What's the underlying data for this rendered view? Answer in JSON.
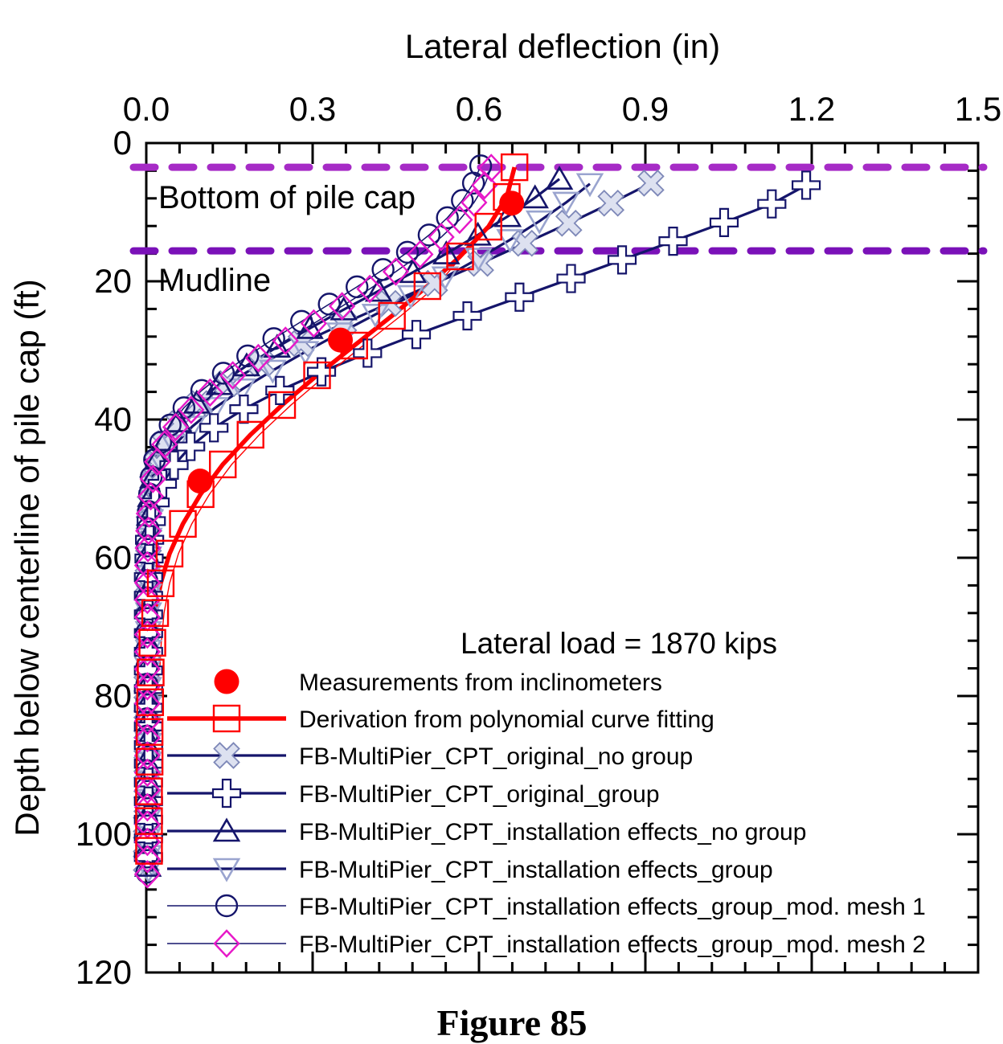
{
  "figure": {
    "caption": "Figure 85"
  },
  "chart_data": {
    "type": "line",
    "title": "",
    "xlabel": "Lateral deflection (in)",
    "ylabel": "Depth below centerline of pile cap (ft)",
    "xlim": [
      0.0,
      1.5
    ],
    "ylim": [
      0,
      120
    ],
    "y_inverted": true,
    "grid": false,
    "x_axis_position": "top",
    "x_ticks": {
      "major_labels": [
        "0.0",
        "0.3",
        "0.6",
        "0.9",
        "1.2",
        "1.5"
      ],
      "major_values": [
        0.0,
        0.3,
        0.6,
        0.9,
        1.2,
        1.5
      ],
      "minor_step": 0.06
    },
    "y_ticks": {
      "major_labels": [
        "0",
        "20",
        "40",
        "60",
        "80",
        "100",
        "120"
      ],
      "major_values": [
        0,
        20,
        40,
        60,
        80,
        100,
        120
      ],
      "minor_step": 4
    },
    "reference_lines": [
      {
        "label": "Bottom of pile cap",
        "depth_ft": 3.5,
        "color": "#a62bc6"
      },
      {
        "label": "Mudline",
        "depth_ft": 15.6,
        "color": "#7a11b8"
      }
    ],
    "legend": {
      "title": "Lateral load = 1870 kips",
      "position": "inside-bottom-left"
    },
    "annotation_colors": {
      "red": "#ff0000",
      "navy": "#15156b",
      "periwinkle": "#8e98c6",
      "magenta": "#e718c8"
    },
    "series": [
      {
        "name": "Measurements from inclinometers",
        "marker": "dot",
        "marker_color": "#ff0000",
        "line": "none",
        "points": [
          [
            0.659,
            8.7
          ],
          [
            0.35,
            28.5
          ],
          [
            0.097,
            48.9
          ]
        ]
      },
      {
        "name": "Derivation from polynomial curve fitting",
        "marker": "square",
        "marker_color": "#ff0000",
        "line_color": "#ff0000",
        "line_width": 5.5,
        "points": [
          [
            0.664,
            3.5
          ],
          [
            0.65,
            7.8
          ],
          [
            0.617,
            12.1
          ],
          [
            0.566,
            16.4
          ],
          [
            0.507,
            20.7
          ],
          [
            0.443,
            25.0
          ],
          [
            0.375,
            29.3
          ],
          [
            0.308,
            33.6
          ],
          [
            0.245,
            37.9
          ],
          [
            0.188,
            42.2
          ],
          [
            0.138,
            46.5
          ],
          [
            0.098,
            50.8
          ],
          [
            0.066,
            55.1
          ],
          [
            0.042,
            59.4
          ],
          [
            0.026,
            63.7
          ],
          [
            0.016,
            68.0
          ],
          [
            0.011,
            72.3
          ],
          [
            0.008,
            76.6
          ],
          [
            0.007,
            80.9
          ],
          [
            0.006,
            85.2
          ],
          [
            0.006,
            89.5
          ],
          [
            0.005,
            93.8
          ],
          [
            0.005,
            98.1
          ],
          [
            0.005,
            102.4
          ]
        ]
      },
      {
        "name": "FB-MultiPier_CPT_original_no group",
        "marker": "x",
        "marker_color": "#8e98c6",
        "line_color": "#15156b",
        "line_width": 3.2,
        "points": [
          [
            0.91,
            5.8
          ],
          [
            0.838,
            8.7
          ],
          [
            0.762,
            11.6
          ],
          [
            0.683,
            14.5
          ],
          [
            0.603,
            17.4
          ],
          [
            0.52,
            20.3
          ],
          [
            0.437,
            23.2
          ],
          [
            0.356,
            26.1
          ],
          [
            0.279,
            29.0
          ],
          [
            0.208,
            31.9
          ],
          [
            0.146,
            34.8
          ],
          [
            0.096,
            37.7
          ],
          [
            0.059,
            40.6
          ],
          [
            0.034,
            43.5
          ],
          [
            0.019,
            46.4
          ],
          [
            0.011,
            49.3
          ],
          [
            0.007,
            52.2
          ],
          [
            0.005,
            55.1
          ],
          [
            0.004,
            58.0
          ],
          [
            0.003,
            60.9
          ],
          [
            0.003,
            63.8
          ],
          [
            0.002,
            66.7
          ],
          [
            0.002,
            69.6
          ],
          [
            0.002,
            72.5
          ],
          [
            0.002,
            75.4
          ],
          [
            0.001,
            78.3
          ],
          [
            0.001,
            81.2
          ],
          [
            0.001,
            84.1
          ],
          [
            0.001,
            87.0
          ],
          [
            0.001,
            89.9
          ],
          [
            0.001,
            92.8
          ],
          [
            0.001,
            95.7
          ],
          [
            0.0,
            98.6
          ],
          [
            0.0,
            101.5
          ],
          [
            0.0,
            104.2
          ]
        ]
      },
      {
        "name": "FB-MultiPier_CPT_original_group",
        "marker": "plus",
        "marker_color": "#15156b",
        "line_color": "#15156b",
        "line_width": 3.2,
        "points": [
          [
            1.19,
            6.1
          ],
          [
            1.128,
            8.8
          ],
          [
            1.042,
            11.5
          ],
          [
            0.95,
            14.2
          ],
          [
            0.858,
            16.9
          ],
          [
            0.766,
            19.6
          ],
          [
            0.673,
            22.3
          ],
          [
            0.579,
            25.0
          ],
          [
            0.487,
            27.7
          ],
          [
            0.399,
            30.4
          ],
          [
            0.316,
            33.1
          ],
          [
            0.241,
            35.8
          ],
          [
            0.176,
            38.5
          ],
          [
            0.122,
            41.2
          ],
          [
            0.08,
            43.9
          ],
          [
            0.05,
            46.6
          ],
          [
            0.029,
            49.3
          ],
          [
            0.016,
            52.0
          ],
          [
            0.009,
            54.7
          ],
          [
            0.006,
            57.4
          ],
          [
            0.005,
            60.1
          ],
          [
            0.004,
            62.8
          ],
          [
            0.004,
            65.5
          ],
          [
            0.004,
            68.2
          ],
          [
            0.004,
            70.9
          ],
          [
            0.004,
            73.6
          ],
          [
            0.004,
            76.3
          ],
          [
            0.004,
            79.0
          ],
          [
            0.004,
            81.7
          ],
          [
            0.004,
            84.4
          ],
          [
            0.004,
            87.1
          ],
          [
            0.004,
            89.8
          ],
          [
            0.004,
            92.5
          ],
          [
            0.004,
            95.2
          ],
          [
            0.004,
            97.9
          ],
          [
            0.004,
            100.6
          ],
          [
            0.004,
            103.3
          ]
        ]
      },
      {
        "name": "FB-MultiPier_CPT_installation effects_no group",
        "marker": "tri-up",
        "marker_color": "#15156b",
        "line_color": "#15156b",
        "line_width": 3.2,
        "points": [
          [
            0.745,
            5.2
          ],
          [
            0.701,
            7.9
          ],
          [
            0.652,
            10.6
          ],
          [
            0.598,
            13.3
          ],
          [
            0.541,
            16.0
          ],
          [
            0.481,
            18.7
          ],
          [
            0.419,
            21.4
          ],
          [
            0.356,
            24.1
          ],
          [
            0.295,
            26.8
          ],
          [
            0.236,
            29.5
          ],
          [
            0.181,
            32.2
          ],
          [
            0.132,
            34.9
          ],
          [
            0.091,
            37.6
          ],
          [
            0.058,
            40.3
          ],
          [
            0.035,
            43.0
          ],
          [
            0.02,
            45.7
          ],
          [
            0.012,
            48.4
          ],
          [
            0.008,
            51.1
          ],
          [
            0.006,
            53.8
          ],
          [
            0.005,
            56.5
          ],
          [
            0.004,
            59.2
          ],
          [
            0.003,
            61.9
          ],
          [
            0.003,
            64.6
          ],
          [
            0.003,
            67.3
          ],
          [
            0.003,
            70.0
          ],
          [
            0.003,
            72.7
          ],
          [
            0.003,
            75.4
          ],
          [
            0.003,
            78.1
          ],
          [
            0.003,
            80.8
          ],
          [
            0.003,
            83.5
          ],
          [
            0.003,
            86.2
          ],
          [
            0.003,
            88.9
          ],
          [
            0.003,
            91.6
          ],
          [
            0.003,
            94.3
          ],
          [
            0.003,
            97.0
          ],
          [
            0.003,
            99.7
          ],
          [
            0.003,
            102.4
          ],
          [
            0.003,
            104.6
          ]
        ]
      },
      {
        "name": "FB-MultiPier_CPT_installation effects_group",
        "marker": "tri-down",
        "marker_color": "#9aa4cf",
        "line_color": "#15156b",
        "line_width": 3.2,
        "points": [
          [
            0.8,
            5.9
          ],
          [
            0.757,
            8.6
          ],
          [
            0.709,
            11.3
          ],
          [
            0.656,
            14.0
          ],
          [
            0.599,
            16.7
          ],
          [
            0.539,
            19.4
          ],
          [
            0.477,
            22.1
          ],
          [
            0.413,
            24.8
          ],
          [
            0.349,
            27.5
          ],
          [
            0.287,
            30.2
          ],
          [
            0.228,
            32.9
          ],
          [
            0.173,
            35.6
          ],
          [
            0.124,
            38.3
          ],
          [
            0.083,
            41.0
          ],
          [
            0.051,
            43.7
          ],
          [
            0.029,
            46.4
          ],
          [
            0.016,
            49.1
          ],
          [
            0.01,
            51.8
          ],
          [
            0.007,
            54.5
          ],
          [
            0.005,
            57.2
          ],
          [
            0.004,
            59.9
          ],
          [
            0.004,
            62.6
          ],
          [
            0.004,
            65.3
          ],
          [
            0.004,
            68.0
          ],
          [
            0.004,
            70.7
          ],
          [
            0.004,
            73.4
          ],
          [
            0.004,
            76.1
          ],
          [
            0.004,
            78.8
          ],
          [
            0.004,
            81.5
          ],
          [
            0.004,
            84.2
          ],
          [
            0.004,
            86.9
          ],
          [
            0.004,
            89.6
          ],
          [
            0.004,
            92.3
          ],
          [
            0.004,
            95.0
          ],
          [
            0.004,
            97.7
          ],
          [
            0.004,
            100.4
          ],
          [
            0.004,
            103.1
          ],
          [
            0.004,
            105.2
          ]
        ]
      },
      {
        "name": "FB-MultiPier_CPT_installation effects_group_mod. mesh 1",
        "marker": "circle",
        "marker_color": "#15156b",
        "line_color": "#15156b",
        "line_width": 1.5,
        "points": [
          [
            0.603,
            3.3
          ],
          [
            0.59,
            5.8
          ],
          [
            0.57,
            8.3
          ],
          [
            0.543,
            10.8
          ],
          [
            0.51,
            13.3
          ],
          [
            0.471,
            15.8
          ],
          [
            0.427,
            18.3
          ],
          [
            0.38,
            20.8
          ],
          [
            0.33,
            23.3
          ],
          [
            0.28,
            25.8
          ],
          [
            0.23,
            28.3
          ],
          [
            0.183,
            30.8
          ],
          [
            0.139,
            33.3
          ],
          [
            0.1,
            35.8
          ],
          [
            0.068,
            38.3
          ],
          [
            0.043,
            40.8
          ],
          [
            0.026,
            43.3
          ],
          [
            0.015,
            45.8
          ],
          [
            0.009,
            48.3
          ],
          [
            0.006,
            50.8
          ],
          [
            0.004,
            53.3
          ],
          [
            0.003,
            55.8
          ],
          [
            0.002,
            58.3
          ],
          [
            0.002,
            60.8
          ],
          [
            0.001,
            63.3
          ],
          [
            0.001,
            65.8
          ],
          [
            0.001,
            68.3
          ],
          [
            0.001,
            70.8
          ],
          [
            0.001,
            73.3
          ],
          [
            0.001,
            75.8
          ],
          [
            0.001,
            78.3
          ],
          [
            0.001,
            80.8
          ],
          [
            0.001,
            83.3
          ],
          [
            0.001,
            85.8
          ],
          [
            0.001,
            88.3
          ],
          [
            0.001,
            90.8
          ],
          [
            0.001,
            93.3
          ],
          [
            0.001,
            95.8
          ],
          [
            0.001,
            98.3
          ],
          [
            0.001,
            100.8
          ],
          [
            0.001,
            103.3
          ],
          [
            0.001,
            105.5
          ]
        ]
      },
      {
        "name": "FB-MultiPier_CPT_installation effects_group_mod. mesh 2",
        "marker": "diamond",
        "marker_color": "#e718c8",
        "line_color": "#15156b",
        "line_width": 1.5,
        "points": [
          [
            0.622,
            3.6
          ],
          [
            0.61,
            6.1
          ],
          [
            0.591,
            8.6
          ],
          [
            0.565,
            11.1
          ],
          [
            0.532,
            13.6
          ],
          [
            0.494,
            16.1
          ],
          [
            0.45,
            18.6
          ],
          [
            0.403,
            21.1
          ],
          [
            0.353,
            23.6
          ],
          [
            0.302,
            26.1
          ],
          [
            0.251,
            28.6
          ],
          [
            0.202,
            31.1
          ],
          [
            0.156,
            33.6
          ],
          [
            0.115,
            36.1
          ],
          [
            0.081,
            38.6
          ],
          [
            0.053,
            41.1
          ],
          [
            0.033,
            43.6
          ],
          [
            0.02,
            46.1
          ],
          [
            0.012,
            48.6
          ],
          [
            0.008,
            51.1
          ],
          [
            0.005,
            53.6
          ],
          [
            0.004,
            56.1
          ],
          [
            0.003,
            58.6
          ],
          [
            0.002,
            61.1
          ],
          [
            0.002,
            63.6
          ],
          [
            0.002,
            66.1
          ],
          [
            0.002,
            68.6
          ],
          [
            0.002,
            71.1
          ],
          [
            0.002,
            73.6
          ],
          [
            0.002,
            76.1
          ],
          [
            0.002,
            78.6
          ],
          [
            0.002,
            81.1
          ],
          [
            0.002,
            83.6
          ],
          [
            0.002,
            86.1
          ],
          [
            0.002,
            88.6
          ],
          [
            0.002,
            91.1
          ],
          [
            0.002,
            93.6
          ],
          [
            0.002,
            96.1
          ],
          [
            0.002,
            98.6
          ],
          [
            0.002,
            101.1
          ],
          [
            0.002,
            103.6
          ],
          [
            0.002,
            105.8
          ]
        ]
      }
    ]
  }
}
